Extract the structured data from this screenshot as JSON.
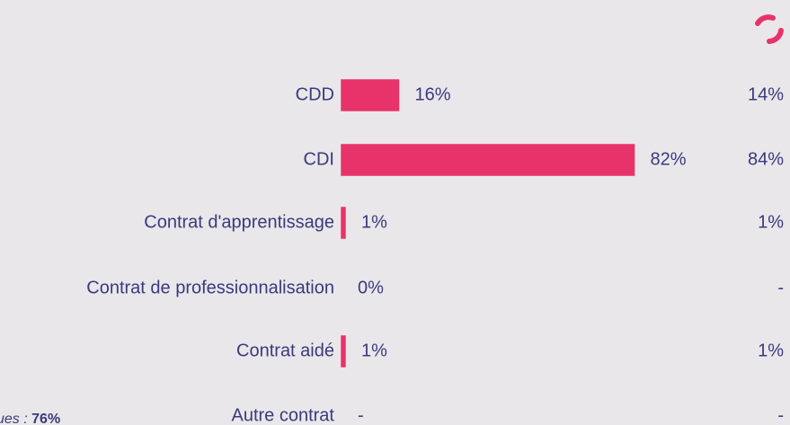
{
  "chart_data": {
    "type": "bar",
    "orientation": "horizontal",
    "categories": [
      "CDD",
      "CDI",
      "Contrat d'apprentissage",
      "Contrat de professionnalisation",
      "Contrat aidé",
      "Autre contrat"
    ],
    "values": [
      16,
      82,
      1,
      0,
      1,
      null
    ],
    "value_labels": [
      "16%",
      "82%",
      "1%",
      "0%",
      "1%",
      "-"
    ],
    "color": "#e8336a",
    "comparison": {
      "values": [
        14,
        84,
        1,
        null,
        1,
        null
      ],
      "value_labels": [
        "14%",
        "84%",
        "1%",
        "-",
        "1%",
        "-"
      ]
    },
    "footnote": {
      "label": "ues :",
      "value": "76%"
    }
  }
}
